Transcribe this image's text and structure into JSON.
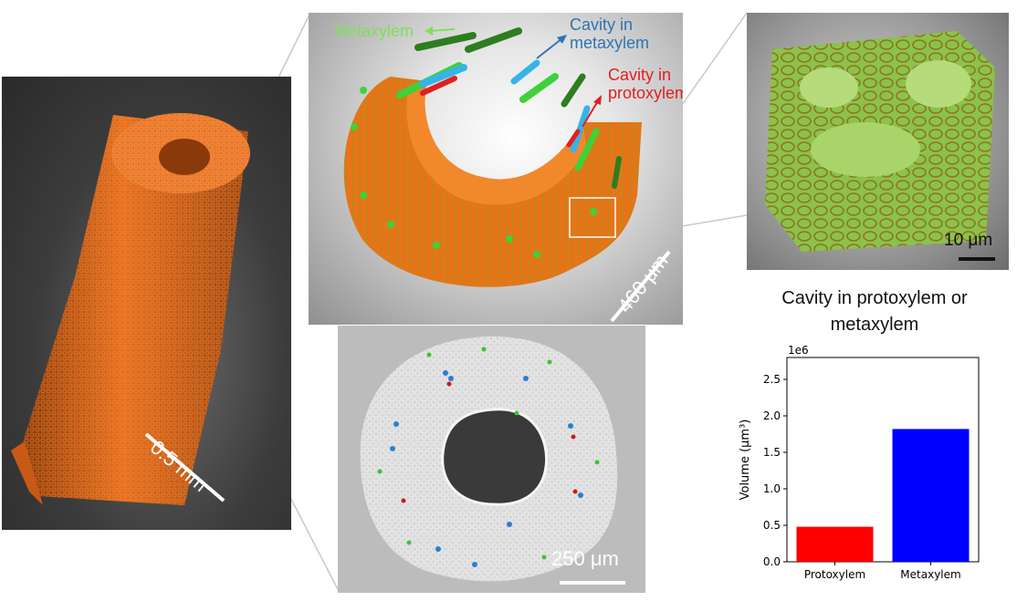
{
  "panels": {
    "stem_3d": {
      "scale_label": "0.5 mm"
    },
    "xylem_3d": {
      "labels": {
        "metaxylem": "Metaxylem",
        "cavity_metaxylem": "Cavity in\nmetaxylem",
        "cavity_protoxylem": "Cavity in\nprotoxylem"
      },
      "scale_label": "460 μm"
    },
    "zoom": {
      "scale_label": "10 μm"
    },
    "ct_slice": {
      "scale_label": "250 μm"
    }
  },
  "colors": {
    "metaxylem_label": "#7ee05a",
    "cavity_metaxylem_label": "#2e74b5",
    "cavity_protoxylem_label": "#e02020",
    "tissue_orange": "#f07820",
    "bar_protoxylem": "#ff0000",
    "bar_metaxylem": "#0000ff"
  },
  "chart_data": {
    "type": "bar",
    "title": "Cavity in protoxylem or metaxylem",
    "categories": [
      "Protoxylem",
      "Metaxylem"
    ],
    "values": [
      480000,
      1820000
    ],
    "bar_colors": [
      "#ff0000",
      "#0000ff"
    ],
    "ylabel": "Volume (μm³)",
    "ylim": [
      0,
      2800000
    ],
    "yticks": [
      0,
      500000,
      1000000,
      1500000,
      2000000,
      2500000
    ],
    "ytick_labels": [
      "0.0",
      "0.5",
      "1.0",
      "1.5",
      "2.0",
      "2.5"
    ],
    "offset_label": "1e6",
    "grid": false
  }
}
